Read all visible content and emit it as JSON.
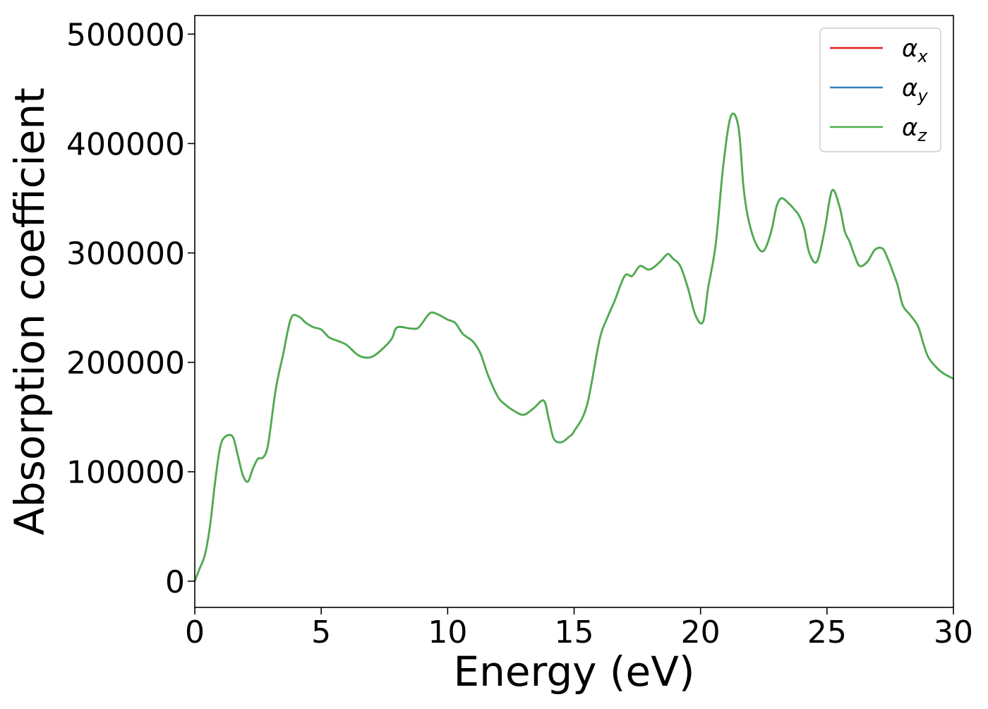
{
  "chart_data": {
    "type": "line",
    "title": "",
    "xlabel": "Energy (eV)",
    "ylabel": "Absorption coefficient",
    "xlim": [
      0,
      30
    ],
    "ylim": [
      -24000,
      517000
    ],
    "x_ticks": [
      0,
      5,
      10,
      15,
      20,
      25,
      30
    ],
    "x_tick_labels": [
      "0",
      "5",
      "10",
      "15",
      "20",
      "25",
      "30"
    ],
    "y_ticks": [
      0,
      100000,
      200000,
      300000,
      400000,
      500000
    ],
    "y_tick_labels": [
      "0",
      "100000",
      "200000",
      "300000",
      "400000",
      "500000"
    ],
    "grid": false,
    "legend_position": "top-right",
    "legend": [
      {
        "symbol": "α",
        "subscript": "x",
        "color": "#e41a1c"
      },
      {
        "symbol": "α",
        "subscript": "y",
        "color": "#377eb8"
      },
      {
        "symbol": "α",
        "subscript": "z",
        "color": "#4daf4a"
      }
    ],
    "note": "",
    "x": [
      0,
      0.2,
      0.4,
      0.6,
      0.8,
      1.0,
      1.2,
      1.5,
      1.7,
      1.9,
      2.1,
      2.3,
      2.5,
      2.7,
      2.9,
      3.2,
      3.5,
      3.8,
      4.1,
      4.4,
      4.7,
      5.0,
      5.3,
      5.6,
      6.0,
      6.5,
      7.0,
      7.5,
      7.8,
      8.0,
      8.5,
      8.8,
      9.0,
      9.3,
      9.6,
      10.0,
      10.3,
      10.6,
      11.0,
      11.3,
      11.6,
      12.0,
      12.3,
      12.6,
      13.0,
      13.4,
      13.8,
      14.0,
      14.2,
      14.5,
      14.8,
      15.0,
      15.5,
      16.0,
      16.3,
      16.6,
      17.0,
      17.3,
      17.6,
      17.9,
      18.1,
      18.4,
      18.7,
      18.9,
      19.2,
      19.5,
      19.8,
      20.1,
      20.3,
      20.6,
      20.9,
      21.2,
      21.5,
      21.7,
      21.9,
      22.2,
      22.5,
      22.8,
      23.0,
      23.2,
      23.5,
      23.7,
      23.9,
      24.1,
      24.3,
      24.6,
      24.9,
      25.2,
      25.5,
      25.7,
      25.9,
      26.1,
      26.3,
      26.6,
      26.9,
      27.2,
      27.4,
      27.6,
      27.8,
      28.0,
      28.3,
      28.6,
      28.8,
      29.0,
      29.3,
      29.6,
      30.0
    ],
    "series": [
      {
        "name": "α_x",
        "color": "#e41a1c",
        "values": [
          0,
          12000,
          24000,
          50000,
          90000,
          122000,
          132000,
          132000,
          115000,
          97000,
          91000,
          103000,
          112000,
          113000,
          125000,
          175000,
          208000,
          240000,
          242000,
          236000,
          232000,
          230000,
          223000,
          220000,
          216000,
          206000,
          205000,
          214000,
          222000,
          232000,
          231000,
          231000,
          236000,
          245000,
          244000,
          239000,
          236000,
          226000,
          219000,
          208000,
          188000,
          168000,
          161000,
          156000,
          152000,
          158000,
          165000,
          148000,
          130000,
          127000,
          132000,
          137000,
          160000,
          220000,
          240000,
          256000,
          279000,
          279000,
          288000,
          285000,
          286000,
          292000,
          299000,
          295000,
          288000,
          268000,
          243000,
          237000,
          268000,
          308000,
          380000,
          425000,
          415000,
          360000,
          330000,
          308000,
          302000,
          320000,
          342000,
          350000,
          345000,
          340000,
          334000,
          322000,
          300000,
          292000,
          320000,
          357000,
          342000,
          320000,
          310000,
          297000,
          288000,
          292000,
          303000,
          304000,
          295000,
          283000,
          270000,
          252000,
          243000,
          233000,
          218000,
          205000,
          196000,
          190000,
          185000
        ]
      },
      {
        "name": "α_y",
        "color": "#377eb8",
        "values": [
          0,
          12000,
          24000,
          50000,
          90000,
          122000,
          132000,
          132000,
          115000,
          97000,
          91000,
          103000,
          112000,
          113000,
          125000,
          175000,
          208000,
          240000,
          242000,
          236000,
          232000,
          230000,
          223000,
          220000,
          216000,
          206000,
          205000,
          214000,
          222000,
          232000,
          231000,
          231000,
          236000,
          245000,
          244000,
          239000,
          236000,
          226000,
          219000,
          208000,
          188000,
          168000,
          161000,
          156000,
          152000,
          158000,
          165000,
          148000,
          130000,
          127000,
          132000,
          137000,
          160000,
          220000,
          240000,
          256000,
          279000,
          279000,
          288000,
          285000,
          286000,
          292000,
          299000,
          295000,
          288000,
          268000,
          243000,
          237000,
          268000,
          308000,
          380000,
          425000,
          415000,
          360000,
          330000,
          308000,
          302000,
          320000,
          342000,
          350000,
          345000,
          340000,
          334000,
          322000,
          300000,
          292000,
          320000,
          357000,
          342000,
          320000,
          310000,
          297000,
          288000,
          292000,
          303000,
          304000,
          295000,
          283000,
          270000,
          252000,
          243000,
          233000,
          218000,
          205000,
          196000,
          190000,
          185000
        ]
      },
      {
        "name": "α_z",
        "color": "#4daf4a",
        "values": [
          0,
          12000,
          24000,
          50000,
          90000,
          122000,
          132000,
          132000,
          115000,
          97000,
          91000,
          103000,
          112000,
          113000,
          125000,
          175000,
          208000,
          240000,
          242000,
          236000,
          232000,
          230000,
          223000,
          220000,
          216000,
          206000,
          205000,
          214000,
          222000,
          232000,
          231000,
          231000,
          236000,
          245000,
          244000,
          239000,
          236000,
          226000,
          219000,
          208000,
          188000,
          168000,
          161000,
          156000,
          152000,
          158000,
          165000,
          148000,
          130000,
          127000,
          132000,
          137000,
          160000,
          220000,
          240000,
          256000,
          279000,
          279000,
          288000,
          285000,
          286000,
          292000,
          299000,
          295000,
          288000,
          268000,
          243000,
          237000,
          268000,
          308000,
          380000,
          425000,
          415000,
          360000,
          330000,
          308000,
          302000,
          320000,
          342000,
          350000,
          345000,
          340000,
          334000,
          322000,
          300000,
          292000,
          320000,
          357000,
          342000,
          320000,
          310000,
          297000,
          288000,
          292000,
          303000,
          304000,
          295000,
          283000,
          270000,
          252000,
          243000,
          233000,
          218000,
          205000,
          196000,
          190000,
          185000
        ]
      }
    ]
  }
}
